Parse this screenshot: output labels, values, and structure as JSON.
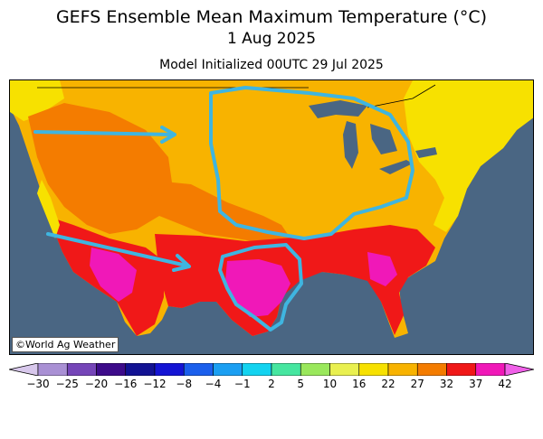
{
  "header": {
    "title": "GEFS Ensemble Mean Maximum Temperature (°C)",
    "valid_date": "1 Aug 2025",
    "initialized": "Model Initialized 00UTC 29 Jul 2025"
  },
  "map": {
    "credit": "©World Ag Weather",
    "ocean_color": "#4a6683",
    "annotation_color": "#3fb5e0",
    "annotations": [
      "arrow over western Canada border pointing east",
      "arrow from southern Nevada pointing east-southeast",
      "outlined area over northern Plains, Midwest and Great Lakes",
      "outlined area over Texas"
    ]
  },
  "legend": {
    "labels": [
      "-30",
      "-25",
      "-20",
      "-16",
      "-12",
      "-8",
      "-4",
      "-1",
      "2",
      "5",
      "10",
      "16",
      "22",
      "27",
      "32",
      "37",
      "42"
    ],
    "colors": [
      "#d8c8ec",
      "#a990d4",
      "#7545b8",
      "#3d0b8a",
      "#121293",
      "#1414d4",
      "#1b5fec",
      "#1b9ff2",
      "#13d3f0",
      "#46e6a0",
      "#9ae85c",
      "#e9f050",
      "#f7e100",
      "#f8b300",
      "#f47c00",
      "#f01818",
      "#f018b8",
      "#f060e8"
    ]
  }
}
